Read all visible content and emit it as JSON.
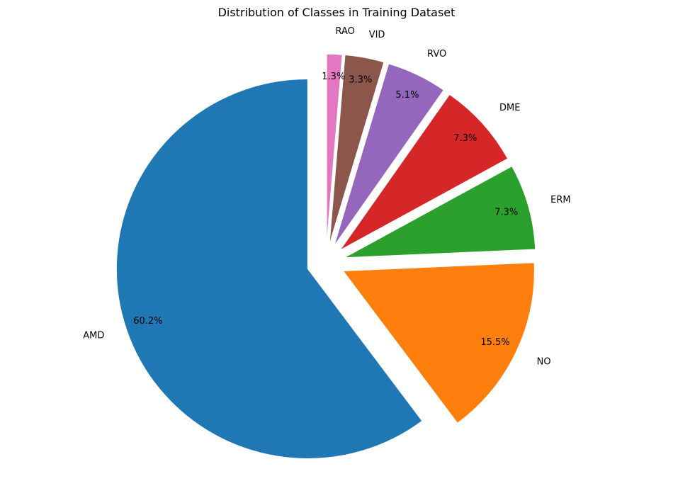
{
  "chart_data": {
    "type": "pie",
    "title": "Distribution of Classes in Training Dataset",
    "slices": [
      {
        "label": "AMD",
        "value": 60.2,
        "pct_label": "60.2%",
        "color": "#1f77b4"
      },
      {
        "label": "NO",
        "value": 15.5,
        "pct_label": "15.5%",
        "color": "#ff7f0e"
      },
      {
        "label": "ERM",
        "value": 7.3,
        "pct_label": "7.3%",
        "color": "#2ca02c"
      },
      {
        "label": "DME",
        "value": 7.3,
        "pct_label": "7.3%",
        "color": "#d62728"
      },
      {
        "label": "RVO",
        "value": 5.1,
        "pct_label": "5.1%",
        "color": "#9467bd"
      },
      {
        "label": "VID",
        "value": 3.3,
        "pct_label": "3.3%",
        "color": "#8c564b"
      },
      {
        "label": "RAO",
        "value": 1.3,
        "pct_label": "1.3%",
        "color": "#e377c2"
      }
    ],
    "start_angle": 90,
    "direction": "counterclockwise",
    "exploded": true
  }
}
